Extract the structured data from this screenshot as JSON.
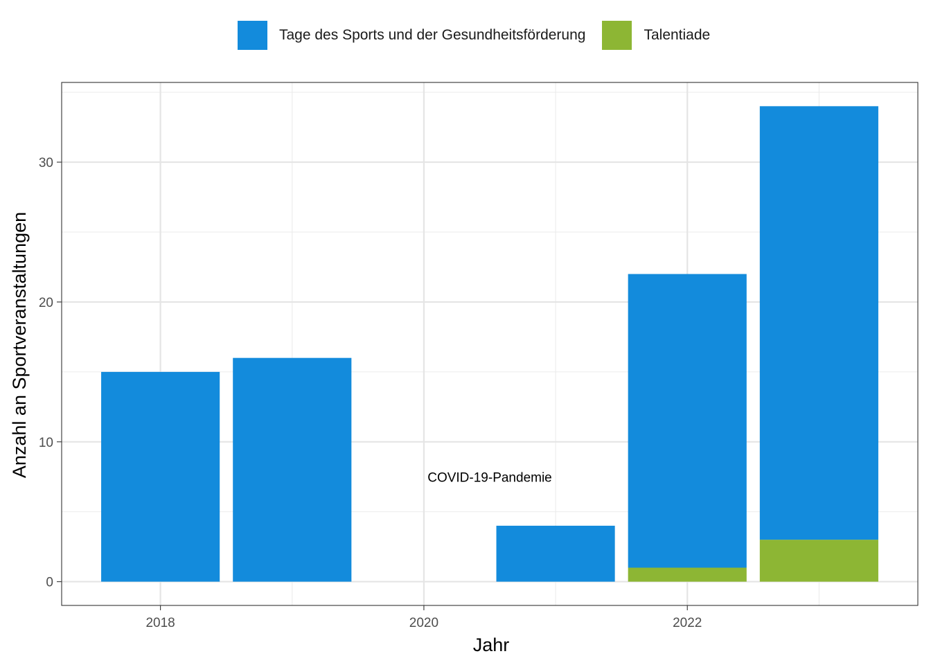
{
  "chart_data": {
    "type": "bar",
    "stacked": true,
    "categories": [
      2018,
      2019,
      2020,
      2021,
      2022,
      2023
    ],
    "series": [
      {
        "name": "Talentiade",
        "color": "#8DB634",
        "values": [
          0,
          0,
          0,
          0,
          1,
          3
        ]
      },
      {
        "name": "Tage des Sports und der Gesundheitsförderung",
        "color": "#138BDC",
        "values": [
          15,
          16,
          0,
          4,
          21,
          31
        ]
      }
    ],
    "xlabel": "Jahr",
    "ylabel": "Anzahl an Sportveranstaltungen",
    "x_ticks": [
      2018,
      2020,
      2022
    ],
    "y_ticks": [
      0,
      10,
      20,
      30
    ],
    "xlim": [
      2017.25,
      2023.75
    ],
    "ylim": [
      -1.7,
      35.7
    ],
    "annotation": {
      "text": "COVID-19-Pandemie",
      "x": 2020.5,
      "y": 7.5
    },
    "grid": true,
    "legend_position": "top"
  },
  "legend": {
    "items": [
      {
        "label": "Tage des Sports und der Gesundheitsförderung",
        "color": "#138BDC"
      },
      {
        "label": "Talentiade",
        "color": "#8DB634"
      }
    ]
  }
}
